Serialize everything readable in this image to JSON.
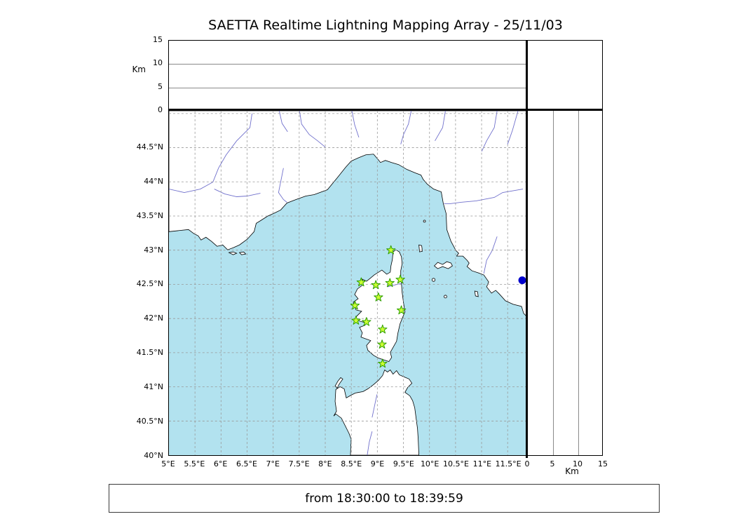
{
  "title": "SAETTA Realtime Lightning Mapping Array - 25/11/03",
  "status": {
    "text": "from 18:30:00 to 18:39:59"
  },
  "labels": {
    "km_left": "Km",
    "km_bottom": "Km"
  },
  "chart_data": {
    "type": "scatter",
    "title": "SAETTA Realtime Lightning Mapping Array - 25/11/03",
    "subtitle": "from 18:30:00 to 18:39:59",
    "layout": "geographic map with altitude cross-section panels (top: altitude vs longitude, right: altitude vs latitude)",
    "map_panel": {
      "lon_min_deg_e": 5.0,
      "lon_max_deg_e": 11.86,
      "lat_min_deg_n": 40.0,
      "lat_max_deg_n": 45.04,
      "grid_step_deg": 0.5,
      "grid_style": "dashed",
      "region": "Corsica and surrounding Mediterranean (S France, NW Italy coast, Elba, N Sardinia)",
      "lon_ticks": [
        {
          "value": 5.0,
          "label": "5°E"
        },
        {
          "value": 5.5,
          "label": "5.5°E"
        },
        {
          "value": 6.0,
          "label": "6°E"
        },
        {
          "value": 6.5,
          "label": "6.5°E"
        },
        {
          "value": 7.0,
          "label": "7°E"
        },
        {
          "value": 7.5,
          "label": "7.5°E"
        },
        {
          "value": 8.0,
          "label": "8°E"
        },
        {
          "value": 8.5,
          "label": "8.5°E"
        },
        {
          "value": 9.0,
          "label": "9°E"
        },
        {
          "value": 9.5,
          "label": "9.5°E"
        },
        {
          "value": 10.0,
          "label": "10°E"
        },
        {
          "value": 10.5,
          "label": "10.5°E"
        },
        {
          "value": 11.0,
          "label": "11°E"
        },
        {
          "value": 11.5,
          "label": "11.5°E"
        }
      ],
      "lat_ticks": [
        {
          "value": 40.0,
          "label": "40°N"
        },
        {
          "value": 40.5,
          "label": "40.5°N"
        },
        {
          "value": 41.0,
          "label": "41°N"
        },
        {
          "value": 41.5,
          "label": "41.5°N"
        },
        {
          "value": 42.0,
          "label": "42°N"
        },
        {
          "value": 42.5,
          "label": "42.5°N"
        },
        {
          "value": 43.0,
          "label": "43°N"
        },
        {
          "value": 43.5,
          "label": "43.5°N"
        },
        {
          "value": 44.0,
          "label": "44°N"
        },
        {
          "value": 44.5,
          "label": "44.5°N"
        }
      ]
    },
    "altitude_panels": {
      "axis_label": "Km",
      "min_km": 0,
      "max_km": 15,
      "ticks": [
        {
          "value": 0,
          "label": "0"
        },
        {
          "value": 5,
          "label": "5"
        },
        {
          "value": 10,
          "label": "10"
        },
        {
          "value": 15,
          "label": "15"
        }
      ],
      "gridlines_km": [
        5,
        10
      ],
      "plotted_points": "none"
    },
    "stations": {
      "marker": "star",
      "fill_color": "#ccff33",
      "edge_color": "#2e9e00",
      "points": [
        {
          "lon": 9.26,
          "lat": 43.0
        },
        {
          "lon": 8.69,
          "lat": 42.53
        },
        {
          "lon": 8.97,
          "lat": 42.49
        },
        {
          "lon": 9.24,
          "lat": 42.52
        },
        {
          "lon": 9.44,
          "lat": 42.57
        },
        {
          "lon": 9.02,
          "lat": 42.31
        },
        {
          "lon": 8.57,
          "lat": 42.19
        },
        {
          "lon": 9.46,
          "lat": 42.12
        },
        {
          "lon": 8.59,
          "lat": 41.97
        },
        {
          "lon": 8.79,
          "lat": 41.95
        },
        {
          "lon": 9.1,
          "lat": 41.84
        },
        {
          "lon": 9.09,
          "lat": 41.62
        },
        {
          "lon": 9.1,
          "lat": 41.34
        }
      ]
    },
    "events": [
      {
        "lon": 11.78,
        "lat": 42.56,
        "marker": "circle",
        "color": "#0000cc"
      }
    ],
    "colors": {
      "sea": "#b2e2ef",
      "land": "#ffffff",
      "coastline": "#000000",
      "rivers": "#7070cc",
      "grid": "#999999"
    }
  }
}
